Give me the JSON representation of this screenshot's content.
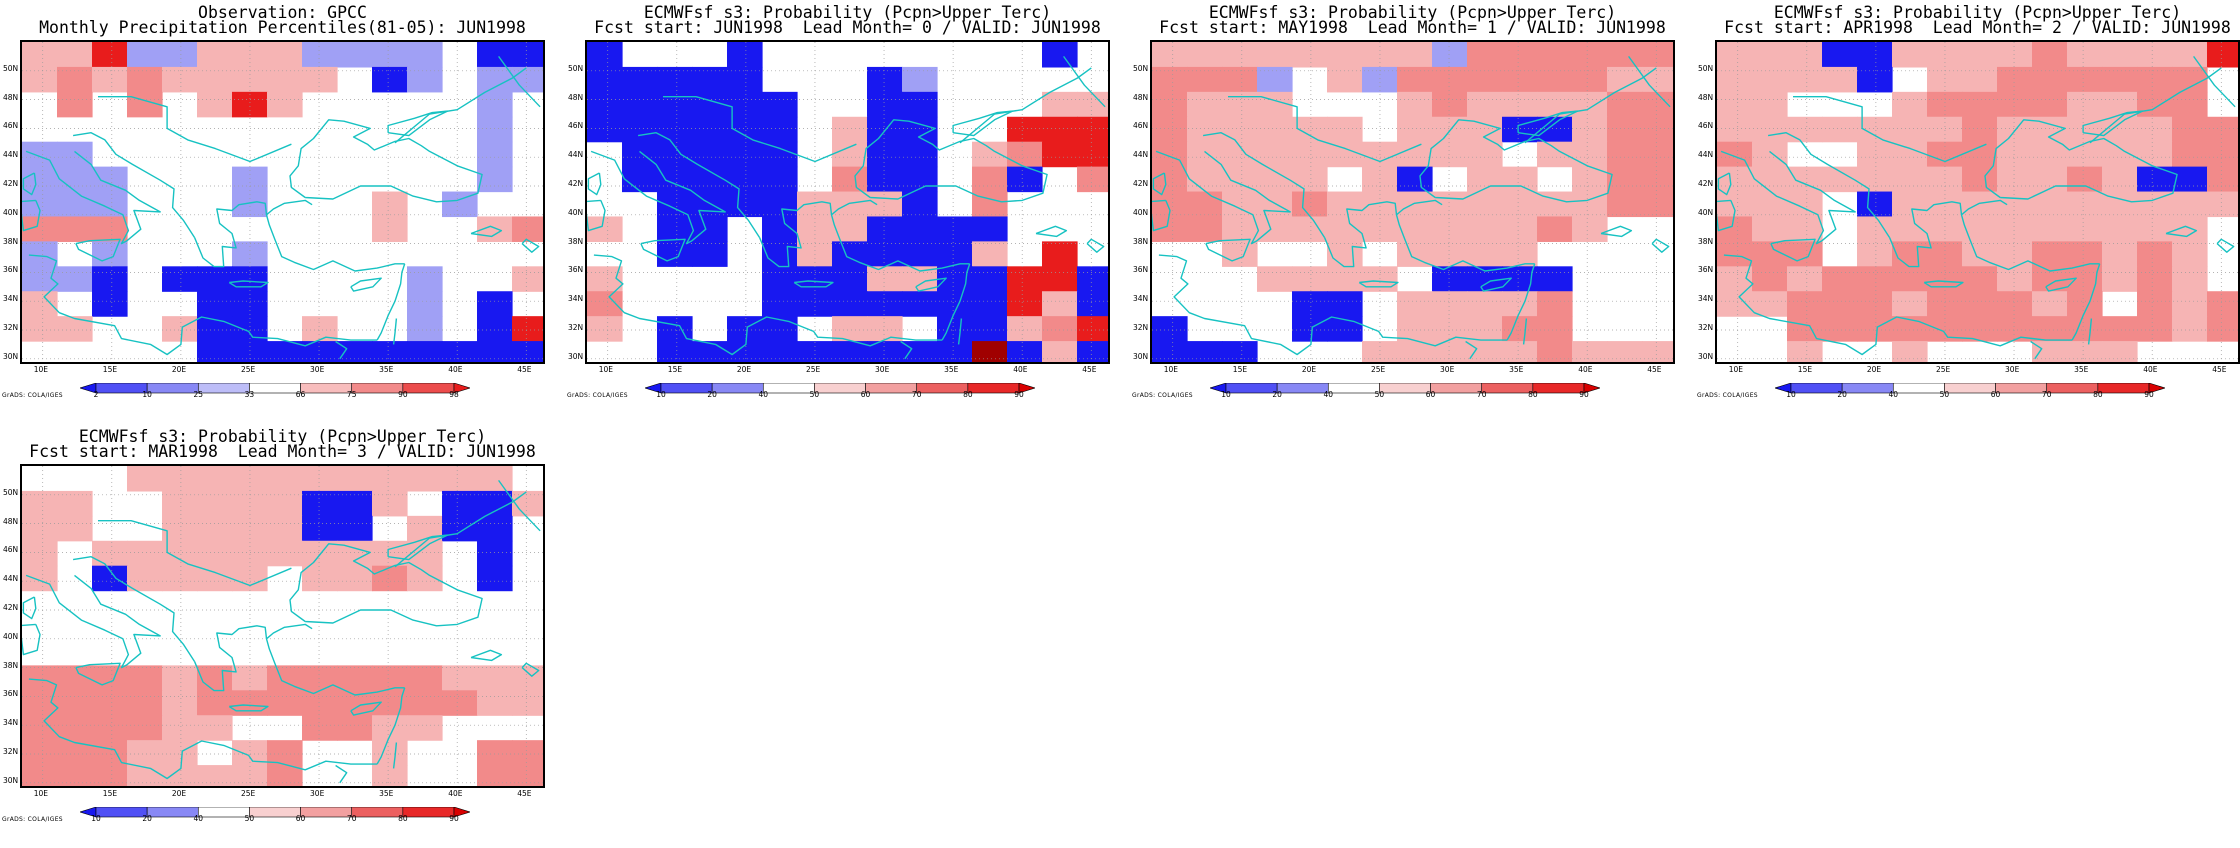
{
  "panels": [
    {
      "id": "obs",
      "title_line1": "Observation: GPCC",
      "title_line2": "Monthly Precipitation Percentiles(81-05): JUN1998",
      "scale": "percentile",
      "legend_labels": [
        "2",
        "10",
        "25",
        "33",
        "66",
        "75",
        "90",
        "98"
      ],
      "grid": [
        "HH0LLHHHLLLLWBB",
        "HMHMHHHHHWBLWLL",
        "WMWMWHRHWWWWWLW",
        "WWWWWWWWWWWWWLW",
        "LLWWWWWWWWWWWLW",
        "LLLWWWLWWWWWWLW",
        "LLLWWWLWWWHWLWW",
        "MMMWWWWWWWHWWHM",
        "LWLWWWLWWWWWWWW",
        "LLBWBBBWWWWLWWH",
        "HWBWWBBWWWWLWBW",
        "HHWWHBBWHWWLWBR",
        "WWWWWBBBBBBBBBB"
      ]
    },
    {
      "id": "lead0",
      "title_line1": "ECMWFsf s3: Probability (Pcpn>Upper Terc)",
      "title_line2": "Fcst start: JUN1998  Lead Month= 0 / VALID: JUN1998",
      "scale": "probability",
      "legend_labels": [
        "10",
        "20",
        "40",
        "50",
        "60",
        "70",
        "80",
        "90"
      ],
      "grid": [
        "BWWWBWWWWWWWWBW",
        "BBBBBWWWBLWWWWW",
        "BBBBBBWWBBWWWHH",
        "BBBBBBWHBBWWRRR",
        "WBBBBBWHBBWHMRR",
        "WBBBBBWMBBWMBWM",
        "WWBBBBHHHBWMWWW",
        "HWBBWBHHBBBBWWW",
        "WWBBWBHBBBBHWRW",
        "HWWWWBBBHHBBRRB",
        "MWWWWBBBBBBBRHB",
        "HWBWBBWHHWBBHMR",
        "WWBBBBBBBBBDBHB"
      ]
    },
    {
      "id": "lead1",
      "title_line1": "ECMWFsf s3: Probability (Pcpn>Upper Terc)",
      "title_line2": "Fcst start: MAY1998  Lead Month= 1 / VALID: JUN1998",
      "scale": "probability",
      "legend_labels": [
        "10",
        "20",
        "40",
        "50",
        "60",
        "70",
        "80",
        "90"
      ],
      "grid": [
        "HHHHHHHHLMMMMMM",
        "MMMLWHLMMMMMMHH",
        "MHHHWWWHMHHHHMM",
        "MHHHHHWHHHBBHMM",
        "MHHHHHHHHHWHHMM",
        "MHHHHWHBWHHWHMM",
        "MMHHMHHHHHHHHMM",
        "MMHHHHHHHHHMHWW",
        "WWHWWHWHHHHWWWW",
        "WWWHHHHWBBBBWWW",
        "WWWWBBWHHHHMWWW",
        "BWWWBBWHHHMMWWW",
        "BBBWWWHHHHHMHHH"
      ]
    },
    {
      "id": "lead2",
      "title_line1": "ECMWFsf s3: Probability (Pcpn>Upper Terc)",
      "title_line2": "Fcst start: APR1998  Lead Month= 2 / VALID: JUN1998",
      "scale": "probability",
      "legend_labels": [
        "10",
        "20",
        "40",
        "50",
        "60",
        "70",
        "80",
        "90"
      ],
      "grid": [
        "HHHBBHHHHMHHHHR",
        "HHHHBWHHMMMMMMW",
        "HHWWWHMMMMHHMMW",
        "HHHHHHHMHHHHHMM",
        "MHWWHHMMHHHHHMM",
        "HHHHHHHMHHMHBBM",
        "HHHWBHHHHHHHHHH",
        "MHHWHHHHHHHHHHW",
        "MMMWHMMHHMMHMHW",
        "HMHMMMMMHMMHMHW",
        "HHMMMHMMMHMWMHM",
        "WWMMMMMMMMMMMHM",
        "WWHWWHWWWHHHWWW"
      ]
    },
    {
      "id": "lead3",
      "title_line1": "ECMWFsf s3: Probability (Pcpn>Upper Terc)",
      "title_line2": "Fcst start: MAR1998  Lead Month= 3 / VALID: JUN1998",
      "scale": "probability",
      "legend_labels": [
        "10",
        "20",
        "40",
        "50",
        "60",
        "70",
        "80",
        "90"
      ],
      "grid": [
        "WWWHHHHHHHHHHHW",
        "HHWWHHHHBBHWBBH",
        "HHWWHHHHBBWHBBW",
        "HWHHHHHHHHHHWBW",
        "HWBHHHHWHHMHWBW",
        "WWWWWWWWWWWWWWW",
        "WWWWWWWWWWWWWWW",
        "WWWWWWWWWWWWWWW",
        "MMMMHMHMMMMMHHH",
        "MMMMHMMMMMMMMHH",
        "MMMMHHWWMMHHWWW",
        "MMMHHWHMWWHWWMM",
        "MMMHHHHMWWHWWMM"
      ]
    }
  ],
  "color_codes": {
    "W": "#ffffff",
    "L": "#a0a0f5",
    "B": "#1818f0",
    "H": "#f6b4b4",
    "M": "#f28a8a",
    "R": "#e81c1c",
    "D": "#a00000",
    "0": "#e81c1c"
  },
  "percentile_legend_colors": [
    "#1818f0",
    "#5050f5",
    "#8888f5",
    "#bdbdf8",
    "#ffffff",
    "#f8bdbd",
    "#f28a8a",
    "#ec4c4c",
    "#e81c1c"
  ],
  "probability_legend_colors": [
    "#1818f0",
    "#5050f5",
    "#8888f5",
    "#ffffff",
    "#f8d0d0",
    "#f2a0a0",
    "#ec6060",
    "#e82828",
    "#d80000"
  ],
  "lat_labels": [
    "50N",
    "48N",
    "46N",
    "44N",
    "42N",
    "40N",
    "38N",
    "36N",
    "34N",
    "32N",
    "30N"
  ],
  "lon_labels": [
    "10E",
    "15E",
    "20E",
    "25E",
    "30E",
    "35E",
    "40E",
    "45E"
  ],
  "credit": "GrADS: COLA/IGES",
  "coast_color": "#17c2c2"
}
